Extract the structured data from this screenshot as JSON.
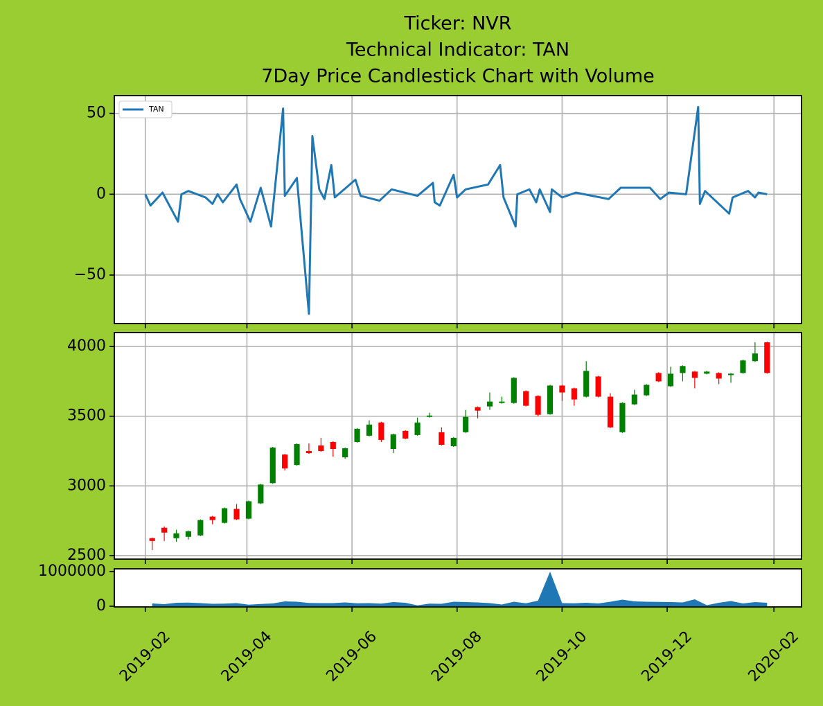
{
  "chart_data": [
    {
      "type": "line",
      "title": [
        "Ticker: NVR",
        "Technical Indicator: TAN",
        "7Day Price Candlestick Chart with Volume"
      ],
      "x": [
        "2019-02-01",
        "2019-02-04",
        "2019-02-11",
        "2019-02-20",
        "2019-02-22",
        "2019-02-26",
        "2019-03-08",
        "2019-03-12",
        "2019-03-15",
        "2019-03-18",
        "2019-03-26",
        "2019-03-28",
        "2019-04-03",
        "2019-04-09",
        "2019-04-15",
        "2019-04-22",
        "2019-04-23",
        "2019-04-30",
        "2019-05-01",
        "2019-05-07",
        "2019-05-09",
        "2019-05-13",
        "2019-05-16",
        "2019-05-20",
        "2019-05-22",
        "2019-06-03",
        "2019-06-06",
        "2019-06-17",
        "2019-06-24",
        "2019-07-09",
        "2019-07-18",
        "2019-07-19",
        "2019-07-22",
        "2019-07-30",
        "2019-08-01",
        "2019-08-06",
        "2019-08-19",
        "2019-08-26",
        "2019-08-28",
        "2019-09-04",
        "2019-09-05",
        "2019-09-12",
        "2019-09-16",
        "2019-09-18",
        "2019-09-24",
        "2019-09-25",
        "2019-10-01",
        "2019-10-09",
        "2019-10-28",
        "2019-11-04",
        "2019-11-21",
        "2019-11-27",
        "2019-12-02",
        "2019-12-12",
        "2019-12-19",
        "2019-12-20",
        "2019-12-23",
        "2020-01-06",
        "2020-01-08",
        "2020-01-17",
        "2020-01-21",
        "2020-01-23",
        "2020-01-28"
      ],
      "series": [
        {
          "name": "TAN",
          "color": "#1f77b4",
          "values": [
            0,
            -7,
            1,
            -17,
            0,
            2,
            -2,
            -6,
            0,
            -5,
            6,
            -3,
            -17,
            4,
            -20,
            53,
            -1,
            10,
            -2,
            -74,
            36,
            3,
            -3,
            18,
            -2,
            9,
            -1,
            -4,
            3,
            -1,
            7,
            -5,
            -7,
            12,
            -2,
            3,
            6,
            18,
            -2,
            -20,
            0,
            3,
            -5,
            3,
            -11,
            3,
            -2,
            1,
            -3,
            4,
            4,
            -3,
            1,
            0,
            54,
            -6,
            2,
            -12,
            -2,
            2,
            -2,
            1,
            0
          ]
        }
      ],
      "xlim": [
        "2019-01-14",
        "2020-02-17"
      ],
      "xticks": [
        "2019-02-01",
        "2019-04-01",
        "2019-06-01",
        "2019-08-01",
        "2019-10-01",
        "2019-12-01",
        "2020-02-01"
      ],
      "ylim": [
        -80,
        61
      ],
      "yticks": [
        {
          "value": -50,
          "label": "−50"
        },
        0,
        50
      ],
      "grid": true,
      "legend": "upper left"
    },
    {
      "type": "candlestick",
      "x": [
        "2019-02-05",
        "2019-02-12",
        "2019-02-19",
        "2019-02-26",
        "2019-03-05",
        "2019-03-12",
        "2019-03-19",
        "2019-03-26",
        "2019-04-02",
        "2019-04-09",
        "2019-04-16",
        "2019-04-23",
        "2019-04-30",
        "2019-05-07",
        "2019-05-14",
        "2019-05-21",
        "2019-05-28",
        "2019-06-04",
        "2019-06-11",
        "2019-06-18",
        "2019-06-25",
        "2019-07-02",
        "2019-07-09",
        "2019-07-16",
        "2019-07-23",
        "2019-07-30",
        "2019-08-06",
        "2019-08-13",
        "2019-08-20",
        "2019-08-27",
        "2019-09-03",
        "2019-09-10",
        "2019-09-17",
        "2019-09-24",
        "2019-10-01",
        "2019-10-08",
        "2019-10-15",
        "2019-10-22",
        "2019-10-29",
        "2019-11-05",
        "2019-11-12",
        "2019-11-19",
        "2019-11-26",
        "2019-12-03",
        "2019-12-10",
        "2019-12-17",
        "2019-12-24",
        "2019-12-31",
        "2020-01-07",
        "2020-01-14",
        "2020-01-21",
        "2020-01-28"
      ],
      "open": [
        2625,
        2700,
        2625,
        2635,
        2645,
        2780,
        2735,
        2835,
        2765,
        2875,
        3020,
        3225,
        3150,
        3250,
        3290,
        3315,
        3205,
        3315,
        3360,
        3455,
        3265,
        3395,
        3365,
        3495,
        3385,
        3285,
        3385,
        3565,
        3570,
        3595,
        3595,
        3680,
        3645,
        3515,
        3720,
        3700,
        3640,
        3785,
        3640,
        3385,
        3585,
        3650,
        3810,
        3715,
        3810,
        3820,
        3805,
        3810,
        3795,
        3810,
        3895,
        4030
      ],
      "high": [
        2630,
        2710,
        2685,
        2680,
        2760,
        2785,
        2845,
        2870,
        2895,
        3015,
        3280,
        3230,
        3305,
        3305,
        3345,
        3320,
        3275,
        3415,
        3470,
        3460,
        3375,
        3400,
        3490,
        3525,
        3420,
        3350,
        3545,
        3570,
        3670,
        3640,
        3780,
        3685,
        3650,
        3725,
        3725,
        3705,
        3895,
        3790,
        3665,
        3600,
        3690,
        3730,
        3815,
        3855,
        3865,
        3825,
        3825,
        3815,
        3810,
        3905,
        4030,
        4035
      ],
      "low": [
        2540,
        2605,
        2600,
        2615,
        2640,
        2725,
        2730,
        2755,
        2760,
        2870,
        3015,
        3110,
        3145,
        3230,
        3245,
        3210,
        3195,
        3310,
        3355,
        3315,
        3235,
        3335,
        3360,
        3490,
        3290,
        3280,
        3380,
        3485,
        3545,
        3590,
        3590,
        3570,
        3500,
        3510,
        3610,
        3575,
        3635,
        3635,
        3415,
        3380,
        3580,
        3645,
        3745,
        3710,
        3750,
        3700,
        3800,
        3730,
        3740,
        3805,
        3890,
        3805
      ],
      "close": [
        2605,
        2665,
        2660,
        2675,
        2755,
        2755,
        2840,
        2760,
        2890,
        3010,
        3275,
        3125,
        3300,
        3235,
        3250,
        3265,
        3270,
        3410,
        3440,
        3330,
        3370,
        3340,
        3455,
        3505,
        3295,
        3345,
        3495,
        3540,
        3605,
        3605,
        3775,
        3575,
        3510,
        3720,
        3670,
        3620,
        3825,
        3640,
        3420,
        3595,
        3655,
        3725,
        3750,
        3805,
        3860,
        3775,
        3820,
        3770,
        3805,
        3900,
        3950,
        3810
      ],
      "up_color": "#008000",
      "down_color": "#ff0000",
      "xlim": [
        "2019-01-14",
        "2020-02-17"
      ],
      "xticks": [
        "2019-02-01",
        "2019-04-01",
        "2019-06-01",
        "2019-08-01",
        "2019-10-01",
        "2019-12-01",
        "2020-02-01"
      ],
      "ylim": [
        2475,
        4100
      ],
      "yticks": [
        2500,
        3000,
        3500,
        4000
      ],
      "grid": true
    },
    {
      "type": "area",
      "x": [
        "2019-02-05",
        "2019-02-12",
        "2019-02-19",
        "2019-02-26",
        "2019-03-05",
        "2019-03-12",
        "2019-03-19",
        "2019-03-26",
        "2019-04-02",
        "2019-04-09",
        "2019-04-16",
        "2019-04-23",
        "2019-04-30",
        "2019-05-07",
        "2019-05-14",
        "2019-05-21",
        "2019-05-28",
        "2019-06-04",
        "2019-06-11",
        "2019-06-18",
        "2019-06-25",
        "2019-07-02",
        "2019-07-09",
        "2019-07-16",
        "2019-07-23",
        "2019-07-30",
        "2019-08-06",
        "2019-08-13",
        "2019-08-20",
        "2019-08-27",
        "2019-09-03",
        "2019-09-10",
        "2019-09-17",
        "2019-09-24",
        "2019-10-01",
        "2019-10-08",
        "2019-10-15",
        "2019-10-22",
        "2019-10-29",
        "2019-11-05",
        "2019-11-12",
        "2019-11-19",
        "2019-11-26",
        "2019-12-03",
        "2019-12-10",
        "2019-12-17",
        "2019-12-24",
        "2019-12-31",
        "2020-01-07",
        "2020-01-14",
        "2020-01-21",
        "2020-01-28"
      ],
      "values": [
        80000,
        60000,
        100000,
        105000,
        90000,
        70000,
        75000,
        90000,
        45000,
        65000,
        80000,
        140000,
        130000,
        95000,
        90000,
        90000,
        110000,
        85000,
        90000,
        75000,
        120000,
        100000,
        25000,
        75000,
        70000,
        130000,
        120000,
        110000,
        90000,
        50000,
        130000,
        85000,
        160000,
        1000000,
        90000,
        85000,
        100000,
        80000,
        130000,
        190000,
        140000,
        130000,
        125000,
        120000,
        110000,
        200000,
        30000,
        100000,
        150000,
        80000,
        120000,
        100000
      ],
      "color": "#1f77b4",
      "xlim": [
        "2019-01-14",
        "2020-02-17"
      ],
      "xticks": [
        {
          "value": "2019-02-01",
          "label": "2019-02"
        },
        {
          "value": "2019-04-01",
          "label": "2019-04"
        },
        {
          "value": "2019-06-01",
          "label": "2019-06"
        },
        {
          "value": "2019-08-01",
          "label": "2019-08"
        },
        {
          "value": "2019-10-01",
          "label": "2019-10"
        },
        {
          "value": "2019-12-01",
          "label": "2019-12"
        },
        {
          "value": "2020-02-01",
          "label": "2020-02"
        }
      ],
      "ylim": [
        -20000,
        1080000
      ],
      "yticks": [
        0,
        1000000
      ],
      "grid": false
    }
  ]
}
